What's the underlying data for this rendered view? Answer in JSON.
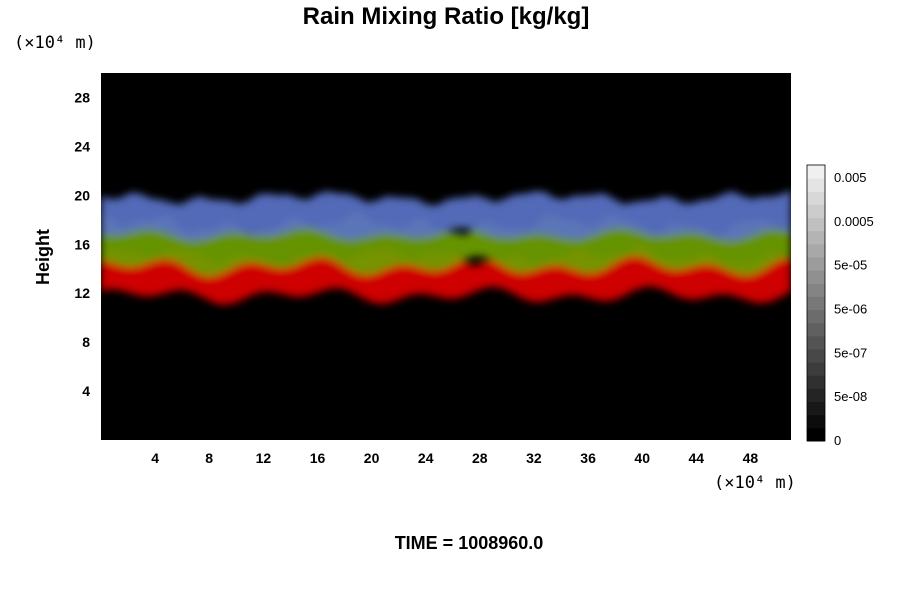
{
  "chart_data": {
    "type": "heatmap",
    "title": "Rain Mixing Ratio [kg/kg]",
    "xlabel": "",
    "ylabel": "Height",
    "x_unit": "(×10⁴ m)",
    "y_unit": "(×10⁴ m)",
    "xlim": [
      0,
      51
    ],
    "ylim": [
      0,
      30
    ],
    "x_ticks": [
      4,
      8,
      12,
      16,
      20,
      24,
      28,
      32,
      36,
      40,
      44,
      48
    ],
    "y_ticks": [
      4,
      8,
      12,
      16,
      20,
      24,
      28
    ],
    "grid": false,
    "colorbar": {
      "labels": [
        "0.005",
        "0.0005",
        "5e-05",
        "5e-06",
        "5e-07",
        "5e-08",
        "0"
      ],
      "label_values": [
        0.005,
        0.0005,
        5e-05,
        5e-06,
        5e-07,
        5e-08,
        0
      ],
      "colors": [
        "#000000",
        "#0c0c0c",
        "#181818",
        "#242424",
        "#303030",
        "#3c3c3c",
        "#484848",
        "#545454",
        "#606060",
        "#6c6c6c",
        "#787878",
        "#848484",
        "#909090",
        "#9c9c9c",
        "#a8a8a8",
        "#b4b4b4",
        "#c0c0c0",
        "#cccccc",
        "#d8d8d8",
        "#e4e4e4",
        "#f0f0f0"
      ]
    },
    "field_layers": [
      {
        "color": "#e00000",
        "bottom": 11.8,
        "top": 15.0,
        "amplitude": 0.7
      },
      {
        "color": "#6f9f00",
        "bottom": 14.2,
        "top": 17.6,
        "amplitude": 0.8
      },
      {
        "color": "#5a73c8",
        "bottom": 16.8,
        "top": 19.8,
        "amplitude": 0.5
      }
    ],
    "background_color": "#000000",
    "time_label": "TIME = 1008960.0"
  }
}
